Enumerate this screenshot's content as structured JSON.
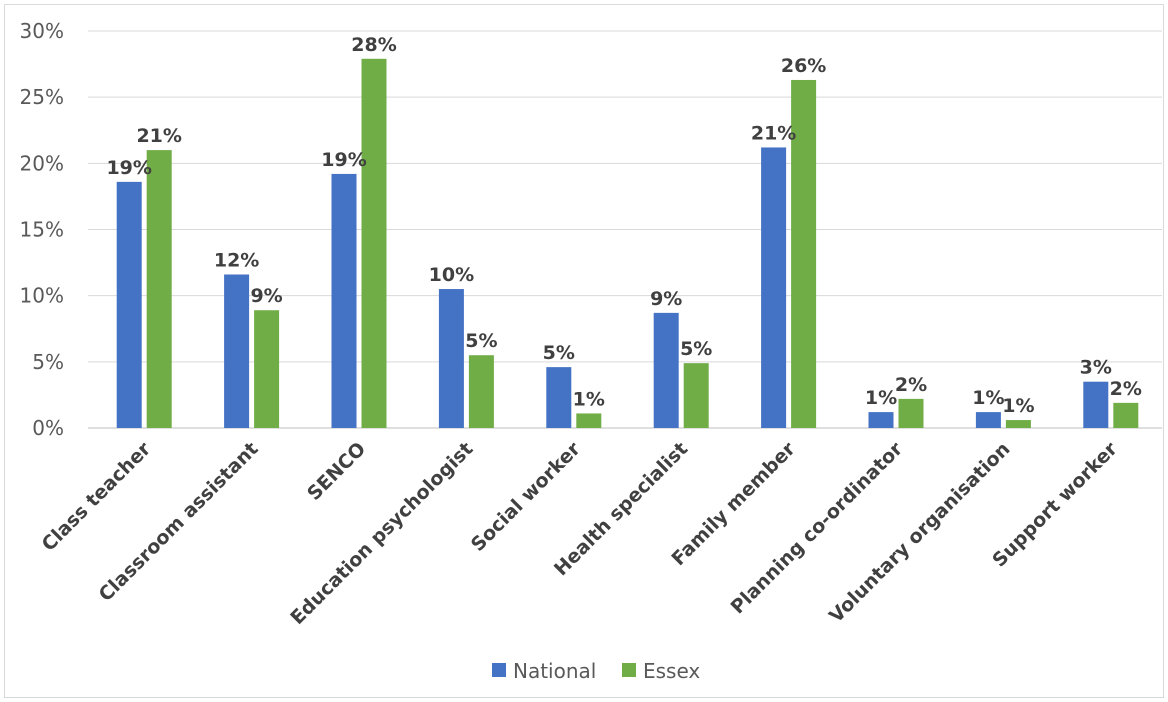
{
  "chart_data": {
    "type": "bar",
    "title": "",
    "xlabel": "",
    "ylabel": "",
    "ylim": [
      0,
      30
    ],
    "y_ticks": [
      "0%",
      "5%",
      "10%",
      "15%",
      "20%",
      "25%",
      "30%"
    ],
    "y_tick_values": [
      0,
      5,
      10,
      15,
      20,
      25,
      30
    ],
    "grid": true,
    "legend_position": "bottom",
    "categories": [
      "Class teacher",
      "Classroom assistant",
      "SENCO",
      "Education psychologist",
      "Social worker",
      "Health specialist",
      "Family member",
      "Planning co-ordinator",
      "Voluntary organisation",
      "Support worker"
    ],
    "series": [
      {
        "name": "National",
        "color": "#4472c4",
        "values": [
          18.6,
          11.6,
          19.2,
          10.5,
          4.6,
          8.7,
          21.2,
          1.2,
          1.2,
          3.5
        ],
        "labels": [
          "19%",
          "12%",
          "19%",
          "10%",
          "5%",
          "9%",
          "21%",
          "1%",
          "1%",
          "3%"
        ]
      },
      {
        "name": "Essex",
        "color": "#70ad47",
        "values": [
          21.0,
          8.9,
          27.9,
          5.5,
          1.1,
          4.9,
          26.3,
          2.2,
          0.6,
          1.9
        ],
        "labels": [
          "21%",
          "9%",
          "28%",
          "5%",
          "1%",
          "5%",
          "26%",
          "2%",
          "1%",
          "2%"
        ]
      }
    ]
  }
}
